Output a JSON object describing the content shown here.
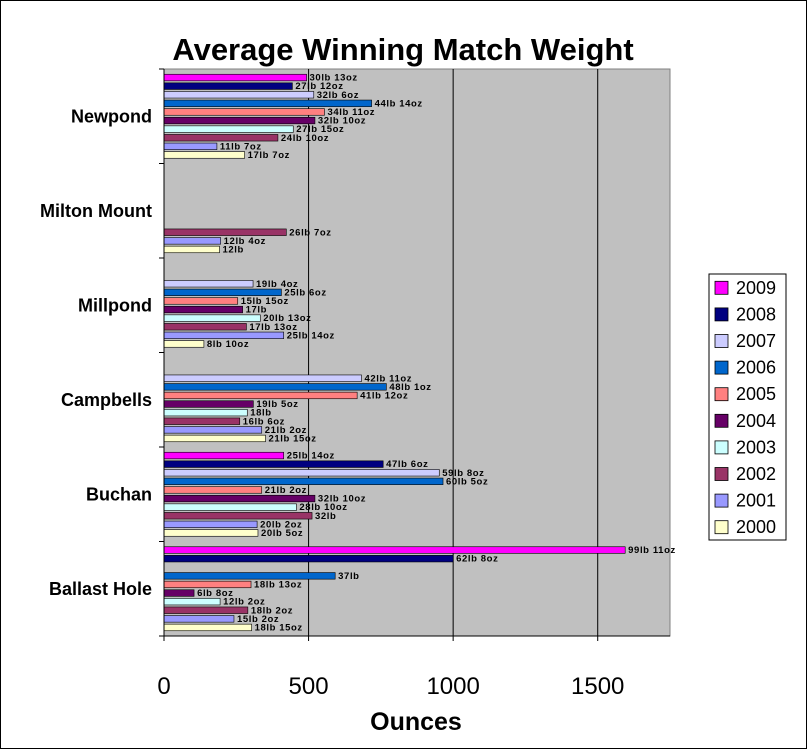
{
  "chart_data": {
    "type": "bar",
    "orientation": "horizontal",
    "title": "Average Winning Match Weight",
    "xlabel": "Ounces",
    "ylabel": "",
    "xlim": [
      0,
      1750
    ],
    "xticks": [
      0,
      500,
      1000,
      1500
    ],
    "grid": "vertical major gridlines",
    "plot_background": "#c0c0c0",
    "legend_position": "right",
    "categories": [
      "Newpond",
      "Milton Mount",
      "Millpond",
      "Campbells",
      "Buchan",
      "Ballast Hole"
    ],
    "series": [
      {
        "name": "2009",
        "color": "#ff00ff",
        "values": [
          493,
          null,
          null,
          null,
          414,
          1595
        ],
        "labels": [
          "30lb 13oz",
          "",
          "",
          "",
          "25lb 14oz",
          "99lb 11oz"
        ]
      },
      {
        "name": "2008",
        "color": "#000080",
        "values": [
          444,
          null,
          null,
          null,
          758,
          1000
        ],
        "labels": [
          "27lb 12oz",
          "",
          "",
          "",
          "47lb 6oz",
          "62lb 8oz"
        ]
      },
      {
        "name": "2007",
        "color": "#ccccff",
        "values": [
          518,
          null,
          308,
          683,
          952,
          null
        ],
        "labels": [
          "32lb 6oz",
          "",
          "19lb 4oz",
          "42lb 11oz",
          "59lb 8oz",
          ""
        ]
      },
      {
        "name": "2006",
        "color": "#0066cc",
        "values": [
          718,
          null,
          406,
          769,
          965,
          592
        ],
        "labels": [
          "44lb 14oz",
          "",
          "25lb 6oz",
          "48lb 1oz",
          "60lb 5oz",
          "37lb"
        ]
      },
      {
        "name": "2005",
        "color": "#ff8080",
        "values": [
          555,
          null,
          255,
          668,
          338,
          301
        ],
        "labels": [
          "34lb 11oz",
          "",
          "15lb 15oz",
          "41lb 12oz",
          "21lb 2oz",
          "18lb 13oz"
        ]
      },
      {
        "name": "2004",
        "color": "#660066",
        "values": [
          522,
          null,
          272,
          309,
          522,
          104
        ],
        "labels": [
          "32lb 10oz",
          "",
          "17lb",
          "19lb 5oz",
          "32lb 10oz",
          "6lb 8oz"
        ]
      },
      {
        "name": "2003",
        "color": "#ccffff",
        "values": [
          447,
          null,
          333,
          288,
          458,
          194
        ],
        "labels": [
          "27lb 15oz",
          "",
          "20lb 13oz",
          "18lb",
          "28lb 10oz",
          "12lb 2oz"
        ]
      },
      {
        "name": "2002",
        "color": "#993366",
        "values": [
          394,
          423,
          285,
          262,
          512,
          290
        ],
        "labels": [
          "24lb 10oz",
          "26lb 7oz",
          "17lb 13oz",
          "16lb 6oz",
          "32lb",
          "18lb 2oz"
        ]
      },
      {
        "name": "2001",
        "color": "#9999ff",
        "values": [
          183,
          196,
          414,
          338,
          322,
          242
        ],
        "labels": [
          "11lb 7oz",
          "12lb 4oz",
          "25lb 14oz",
          "21lb 2oz",
          "20lb 2oz",
          "15lb 2oz"
        ]
      },
      {
        "name": "2000",
        "color": "#ffffcc",
        "values": [
          279,
          192,
          138,
          351,
          325,
          303
        ],
        "labels": [
          "17lb 7oz",
          "12lb",
          "8lb 10oz",
          "21lb 15oz",
          "20lb 5oz",
          "18lb 15oz"
        ]
      }
    ]
  }
}
